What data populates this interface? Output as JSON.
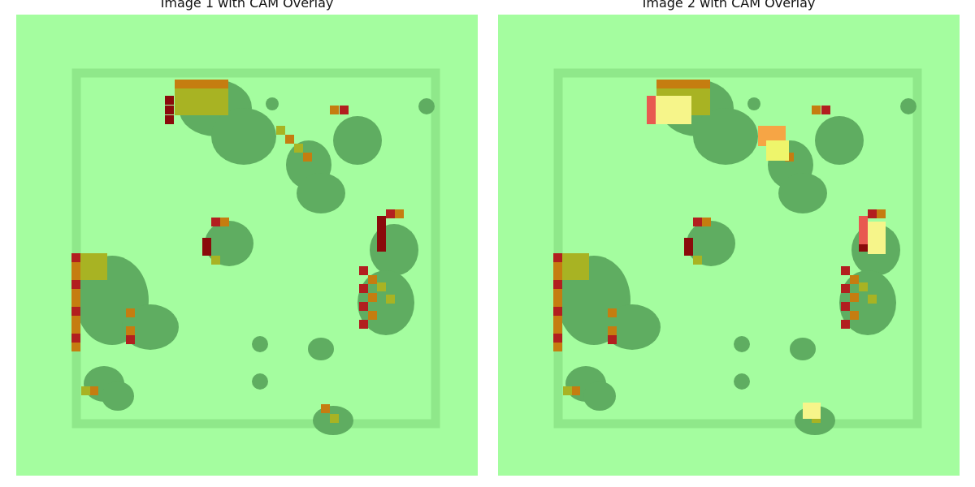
{
  "panels": [
    {
      "title": "Image 1 with CAM Overlay",
      "colors": {
        "background": "#a4fd9f",
        "blob": "#5fad61",
        "frame": "#8fe88a"
      }
    },
    {
      "title": "Image 2 with CAM Overlay",
      "colors": {
        "background": "#a4fd9f",
        "blob": "#5fad61",
        "frame": "#8fe88a"
      }
    }
  ]
}
